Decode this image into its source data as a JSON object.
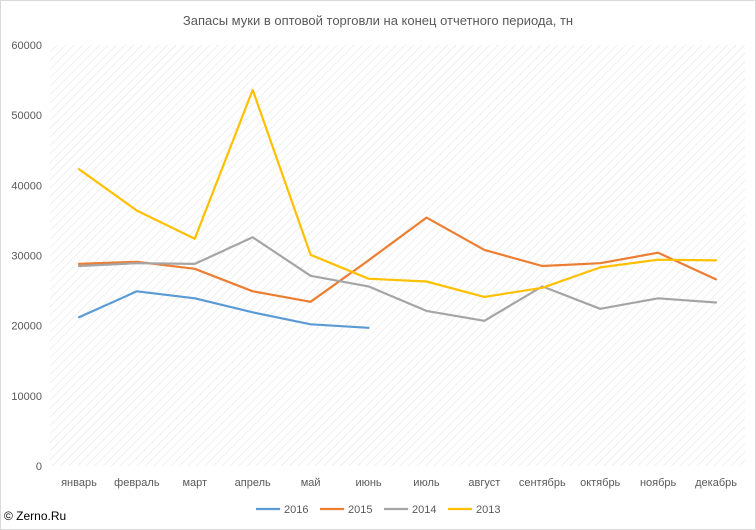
{
  "chart_data": {
    "type": "line",
    "title": "Запасы муки в оптовой торговли на конец отчетного периода, тн",
    "categories": [
      "январь",
      "февраль",
      "март",
      "апрель",
      "май",
      "июнь",
      "июль",
      "август",
      "сентябрь",
      "октябрь",
      "ноябрь",
      "декабрь"
    ],
    "ylim": [
      0,
      60000
    ],
    "yticks": [
      0,
      10000,
      20000,
      30000,
      40000,
      50000,
      60000
    ],
    "ytick_labels": [
      "0",
      "10000",
      "20000",
      "30000",
      "40000",
      "50000",
      "60000"
    ],
    "grid": "diagonal hatched background",
    "legend_position": "bottom",
    "series": [
      {
        "name": "2016",
        "color": "#5b9bd5",
        "values": [
          21200,
          24900,
          23900,
          21900,
          20200,
          19700,
          null,
          null,
          null,
          null,
          null,
          null
        ]
      },
      {
        "name": "2015",
        "color": "#ed7d31",
        "values": [
          28800,
          29100,
          28100,
          24900,
          23400,
          29300,
          35400,
          30800,
          28500,
          28900,
          30400,
          26600
        ]
      },
      {
        "name": "2014",
        "color": "#a5a5a5",
        "values": [
          28500,
          28900,
          28800,
          32600,
          27100,
          25600,
          22100,
          20700,
          25600,
          22400,
          23900,
          23300
        ]
      },
      {
        "name": "2013",
        "color": "#ffc000",
        "values": [
          42300,
          36400,
          32400,
          53600,
          30100,
          26700,
          26300,
          24100,
          25400,
          28300,
          29400,
          29300
        ]
      }
    ]
  },
  "credit": "© Zerno.Ru"
}
